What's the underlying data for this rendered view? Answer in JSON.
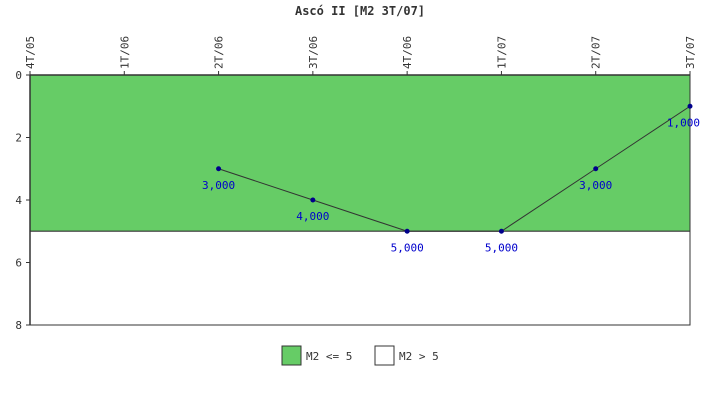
{
  "chart_data": {
    "type": "line",
    "title": "Ascó II [M2 3T/07]",
    "xlabel": "",
    "ylabel": "",
    "categories": [
      "4T/05",
      "1T/06",
      "2T/06",
      "3T/06",
      "4T/06",
      "1T/07",
      "2T/07",
      "3T/07"
    ],
    "y_ticks": [
      "0",
      "2",
      "4",
      "6",
      "8"
    ],
    "ylim": [
      0,
      8
    ],
    "y_inverted": true,
    "grid": false,
    "series": [
      {
        "values": [
          null,
          null,
          3,
          4,
          5,
          5,
          3,
          1
        ],
        "labels": [
          null,
          null,
          "3,000",
          "4,000",
          "5,000",
          "5,000",
          "3,000",
          "1,000"
        ],
        "color": "#333333",
        "marker_color": "#00008b",
        "label_color": "#0000cc"
      }
    ],
    "bands": [
      {
        "name": "M2 <= 5",
        "from": 0,
        "to": 5,
        "color": "#66cc66"
      },
      {
        "name": "M2 > 5",
        "from": 5,
        "to": 8,
        "color": "#ffffff"
      }
    ],
    "legend": {
      "position": "bottom",
      "items": [
        {
          "label": "M2 <= 5",
          "color": "#66cc66"
        },
        {
          "label": "M2 > 5",
          "color": "#ffffff"
        }
      ]
    }
  }
}
